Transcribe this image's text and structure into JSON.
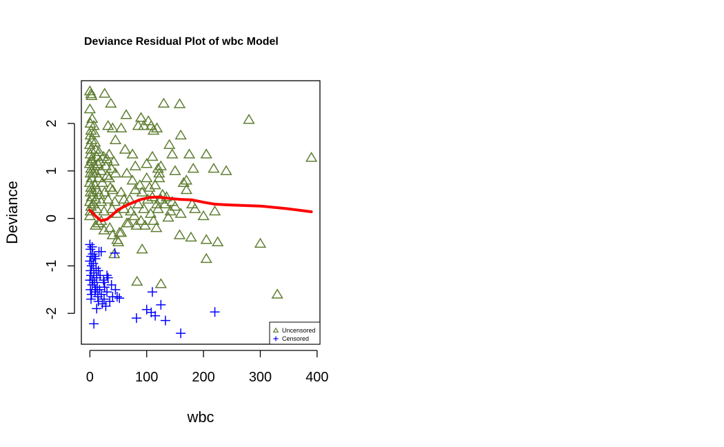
{
  "chart_data": {
    "type": "scatter",
    "title": "Deviance Residual Plot of wbc Model",
    "xlabel": "wbc",
    "ylabel": "Deviance",
    "xlim": [
      -15,
      405
    ],
    "ylim": [
      -2.65,
      2.9
    ],
    "xticks": [
      0,
      100,
      200,
      300,
      400
    ],
    "yticks": [
      -2,
      -1,
      0,
      1,
      2
    ],
    "grid": false,
    "legend": {
      "position": "bottom-right",
      "items": [
        "Uncensored",
        "Censored"
      ]
    },
    "colors": {
      "uncensored": "#5e7d31",
      "censored": "#0000ff",
      "smoother": "#ff0000"
    },
    "series": [
      {
        "name": "Uncensored",
        "marker": "triangle",
        "points": [
          [
            0,
            2.68
          ],
          [
            2,
            2.62
          ],
          [
            3,
            2.58
          ],
          [
            26,
            2.63
          ],
          [
            37,
            2.42
          ],
          [
            130,
            2.42
          ],
          [
            158,
            2.41
          ],
          [
            0,
            2.3
          ],
          [
            4,
            2.1
          ],
          [
            1,
            2.0
          ],
          [
            7,
            1.95
          ],
          [
            2,
            1.85
          ],
          [
            1,
            1.75
          ],
          [
            3,
            1.65
          ],
          [
            0,
            1.55
          ],
          [
            2,
            1.45
          ],
          [
            1,
            1.35
          ],
          [
            3,
            1.25
          ],
          [
            0,
            1.15
          ],
          [
            2,
            1.05
          ],
          [
            1,
            0.95
          ],
          [
            3,
            0.85
          ],
          [
            0,
            0.75
          ],
          [
            2,
            0.65
          ],
          [
            1,
            0.55
          ],
          [
            3,
            0.45
          ],
          [
            0,
            0.35
          ],
          [
            2,
            0.25
          ],
          [
            1,
            0.15
          ],
          [
            0,
            0.05
          ],
          [
            5,
            0.95
          ],
          [
            5,
            0.55
          ],
          [
            4,
            1.2
          ],
          [
            6,
            0.3
          ],
          [
            8,
            1.8
          ],
          [
            9,
            1.6
          ],
          [
            8,
            1.1
          ],
          [
            10,
            1.45
          ],
          [
            9,
            0.7
          ],
          [
            10,
            0.4
          ],
          [
            11,
            0.95
          ],
          [
            12,
            1.3
          ],
          [
            12,
            0.2
          ],
          [
            13,
            0.6
          ],
          [
            14,
            1.15
          ],
          [
            15,
            0.85
          ],
          [
            16,
            1.4
          ],
          [
            17,
            0.5
          ],
          [
            18,
            1.2
          ],
          [
            20,
            0.35
          ],
          [
            20,
            1.0
          ],
          [
            22,
            0.75
          ],
          [
            24,
            1.3
          ],
          [
            25,
            0.15
          ],
          [
            26,
            0.55
          ],
          [
            28,
            1.1
          ],
          [
            30,
            0.9
          ],
          [
            30,
            1.25
          ],
          [
            32,
            0.4
          ],
          [
            34,
            0.85
          ],
          [
            34,
            1.35
          ],
          [
            36,
            0.65
          ],
          [
            38,
            1.05
          ],
          [
            39,
            0.2
          ],
          [
            40,
            0.6
          ],
          [
            42,
            1.2
          ],
          [
            44,
            0.35
          ],
          [
            45,
            0.95
          ],
          [
            48,
            0.1
          ],
          [
            35,
            -0.2
          ],
          [
            40,
            -0.35
          ],
          [
            43,
            -0.75
          ],
          [
            48,
            -0.45
          ],
          [
            52,
            -0.3
          ],
          [
            15,
            -0.1
          ],
          [
            20,
            -0.05
          ],
          [
            10,
            -0.15
          ],
          [
            25,
            -0.25
          ],
          [
            32,
            1.95
          ],
          [
            40,
            1.9
          ],
          [
            45,
            1.65
          ],
          [
            55,
            1.9
          ],
          [
            62,
            1.45
          ],
          [
            64,
            2.18
          ],
          [
            75,
            1.35
          ],
          [
            80,
            1.1
          ],
          [
            85,
            1.95
          ],
          [
            90,
            2.12
          ],
          [
            95,
            1.95
          ],
          [
            100,
            1.15
          ],
          [
            103,
            2.05
          ],
          [
            108,
            1.95
          ],
          [
            110,
            1.3
          ],
          [
            112,
            1.85
          ],
          [
            118,
            1.9
          ],
          [
            120,
            1.05
          ],
          [
            122,
            0.95
          ],
          [
            125,
            1.1
          ],
          [
            140,
            1.55
          ],
          [
            145,
            1.35
          ],
          [
            150,
            1.0
          ],
          [
            160,
            1.75
          ],
          [
            170,
            0.8
          ],
          [
            170,
            0.6
          ],
          [
            175,
            1.35
          ],
          [
            182,
            1.05
          ],
          [
            205,
            1.35
          ],
          [
            218,
            1.05
          ],
          [
            240,
            1.0
          ],
          [
            280,
            2.08
          ],
          [
            390,
            1.28
          ],
          [
            55,
            0.55
          ],
          [
            60,
            0.2
          ],
          [
            65,
            0.95
          ],
          [
            68,
            -0.1
          ],
          [
            70,
            0.4
          ],
          [
            72,
            0.15
          ],
          [
            75,
            0.8
          ],
          [
            78,
            0.05
          ],
          [
            80,
            0.6
          ],
          [
            82,
            -0.15
          ],
          [
            85,
            0.3
          ],
          [
            88,
            0.7
          ],
          [
            90,
            -0.05
          ],
          [
            92,
            0.55
          ],
          [
            95,
            0.2
          ],
          [
            97,
            -0.15
          ],
          [
            100,
            0.85
          ],
          [
            102,
            0.4
          ],
          [
            105,
            0.65
          ],
          [
            107,
            0.1
          ],
          [
            110,
            0.45
          ],
          [
            112,
            -0.05
          ],
          [
            115,
            0.7
          ],
          [
            118,
            0.3
          ],
          [
            120,
            0.2
          ],
          [
            122,
            0.85
          ],
          [
            125,
            0.4
          ],
          [
            128,
            0.5
          ],
          [
            132,
            0.3
          ],
          [
            135,
            0.45
          ],
          [
            138,
            0.02
          ],
          [
            142,
            0.15
          ],
          [
            145,
            0.35
          ],
          [
            150,
            0.25
          ],
          [
            160,
            0.1
          ],
          [
            165,
            0.75
          ],
          [
            180,
            0.3
          ],
          [
            185,
            0.2
          ],
          [
            200,
            0.05
          ],
          [
            220,
            0.15
          ],
          [
            50,
            -0.5
          ],
          [
            55,
            -0.3
          ],
          [
            60,
            0.4
          ],
          [
            65,
            -0.1
          ],
          [
            92,
            -0.65
          ],
          [
            117,
            -0.2
          ],
          [
            158,
            -0.35
          ],
          [
            178,
            -0.4
          ],
          [
            205,
            -0.45
          ],
          [
            225,
            -0.5
          ],
          [
            300,
            -0.53
          ],
          [
            205,
            -0.85
          ],
          [
            83,
            -1.33
          ],
          [
            125,
            -1.38
          ],
          [
            330,
            -1.6
          ]
        ]
      },
      {
        "name": "Censored",
        "marker": "plus",
        "points": [
          [
            0,
            -0.55
          ],
          [
            1,
            -0.65
          ],
          [
            2,
            -0.8
          ],
          [
            0,
            -0.9
          ],
          [
            3,
            -1.0
          ],
          [
            1,
            -1.1
          ],
          [
            2,
            -1.2
          ],
          [
            0,
            -1.3
          ],
          [
            4,
            -1.4
          ],
          [
            1,
            -1.5
          ],
          [
            3,
            -1.6
          ],
          [
            2,
            -1.7
          ],
          [
            5,
            -0.75
          ],
          [
            6,
            -0.95
          ],
          [
            7,
            -1.15
          ],
          [
            8,
            -1.35
          ],
          [
            9,
            -1.55
          ],
          [
            10,
            -0.85
          ],
          [
            11,
            -1.05
          ],
          [
            12,
            -1.25
          ],
          [
            13,
            -1.45
          ],
          [
            14,
            -1.65
          ],
          [
            15,
            -1.75
          ],
          [
            16,
            -0.7
          ],
          [
            4,
            -0.6
          ],
          [
            8,
            -0.8
          ],
          [
            12,
            -1.9
          ],
          [
            17,
            -1.5
          ],
          [
            18,
            -1.2
          ],
          [
            20,
            -1.6
          ],
          [
            22,
            -1.8
          ],
          [
            24,
            -1.3
          ],
          [
            25,
            -1.7
          ],
          [
            26,
            -1.45
          ],
          [
            28,
            -1.85
          ],
          [
            30,
            -1.55
          ],
          [
            32,
            -1.25
          ],
          [
            35,
            -1.75
          ],
          [
            38,
            -1.4
          ],
          [
            40,
            -1.65
          ],
          [
            30,
            -1.2
          ],
          [
            25,
            -1.35
          ],
          [
            45,
            -1.5
          ],
          [
            48,
            -1.65
          ],
          [
            52,
            -1.68
          ],
          [
            44,
            -0.73
          ],
          [
            20,
            -0.7
          ],
          [
            15,
            -1.1
          ],
          [
            10,
            -1.5
          ],
          [
            5,
            -1.3
          ],
          [
            7,
            -2.22
          ],
          [
            82,
            -2.1
          ],
          [
            100,
            -1.92
          ],
          [
            110,
            -1.55
          ],
          [
            108,
            -1.98
          ],
          [
            115,
            -2.05
          ],
          [
            125,
            -1.82
          ],
          [
            133,
            -2.15
          ],
          [
            160,
            -2.42
          ],
          [
            220,
            -1.97
          ]
        ]
      },
      {
        "name": "",
        "type": "line",
        "points": [
          [
            0,
            0.17
          ],
          [
            10,
            0.05
          ],
          [
            20,
            -0.05
          ],
          [
            30,
            -0.02
          ],
          [
            40,
            0.08
          ],
          [
            50,
            0.18
          ],
          [
            60,
            0.25
          ],
          [
            75,
            0.33
          ],
          [
            90,
            0.4
          ],
          [
            105,
            0.44
          ],
          [
            120,
            0.45
          ],
          [
            140,
            0.42
          ],
          [
            160,
            0.4
          ],
          [
            180,
            0.39
          ],
          [
            200,
            0.34
          ],
          [
            220,
            0.3
          ],
          [
            250,
            0.28
          ],
          [
            300,
            0.26
          ],
          [
            350,
            0.2
          ],
          [
            390,
            0.14
          ]
        ]
      }
    ]
  }
}
